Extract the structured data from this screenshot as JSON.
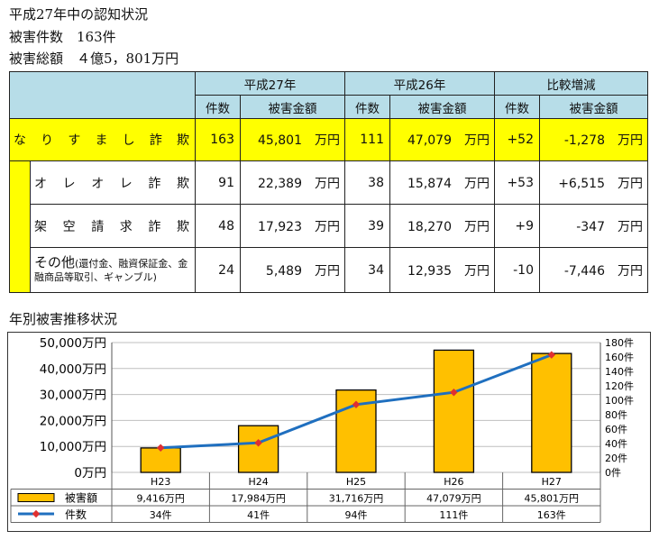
{
  "header": {
    "title": "平成27年中の認知状況",
    "cases_line": "被害件数　163件",
    "amount_line": "被害総額　４億5，801万円"
  },
  "summary": {
    "group_headers": [
      "平成27年",
      "平成26年",
      "比較増減"
    ],
    "sub_headers": [
      "件数",
      "被害金額",
      "件数",
      "被害金額",
      "件数",
      "被害金額"
    ],
    "unit": "万円",
    "total": {
      "label": "なりすまし詐欺",
      "h27_count": "163",
      "h27_amount": "45,801",
      "h26_count": "111",
      "h26_amount": "47,079",
      "diff_count": "+52",
      "diff_amount": "-1,278"
    },
    "rows": [
      {
        "label": "オレオレ詐欺",
        "h27_count": "91",
        "h27_amount": "22,389",
        "h26_count": "38",
        "h26_amount": "15,874",
        "diff_count": "+53",
        "diff_amount": "+6,515"
      },
      {
        "label": "架空請求詐欺",
        "h27_count": "48",
        "h27_amount": "17,923",
        "h26_count": "39",
        "h26_amount": "18,270",
        "diff_count": "+9",
        "diff_amount": "-347"
      },
      {
        "label": "その他",
        "note": "(還付金、融資保証金、金融商品等取引、ギャンブル)",
        "h27_count": "24",
        "h27_amount": "5,489",
        "h26_count": "34",
        "h26_amount": "12,935",
        "diff_count": "-10",
        "diff_amount": "-7,446"
      }
    ]
  },
  "chart_section_title": "年別被害推移状況",
  "chart_data": {
    "type": "bar",
    "categories": [
      "H23",
      "H24",
      "H25",
      "H26",
      "H27"
    ],
    "series": [
      {
        "name": "被害額",
        "kind": "bar",
        "axis": "left",
        "values": [
          9416,
          17984,
          31716,
          47079,
          45801
        ],
        "labels": [
          "9,416万円",
          "17,984万円",
          "31,716万円",
          "47,079万円",
          "45,801万円"
        ],
        "color": "#ffc000"
      },
      {
        "name": "件数",
        "kind": "line",
        "axis": "right",
        "values": [
          34,
          41,
          94,
          111,
          163
        ],
        "labels": [
          "34件",
          "41件",
          "94件",
          "111件",
          "163件"
        ],
        "color": "#1f6fbf",
        "marker_color": "#e03030"
      }
    ],
    "y_left": {
      "min": 0,
      "max": 50000,
      "step": 10000,
      "tick_labels": [
        "0万円",
        "10,000万円",
        "20,000万円",
        "30,000万円",
        "40,000万円",
        "50,000万円"
      ]
    },
    "y_right": {
      "min": 0,
      "max": 180,
      "step": 20,
      "tick_labels": [
        "0件",
        "20件",
        "40件",
        "60件",
        "80件",
        "100件",
        "120件",
        "140件",
        "160件",
        "180件"
      ]
    },
    "grid": true,
    "legend": "data-table-below"
  }
}
